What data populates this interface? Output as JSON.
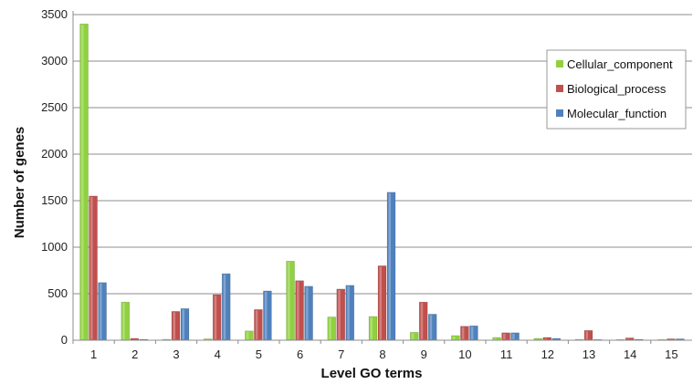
{
  "chart_data": {
    "type": "bar",
    "title": "",
    "xlabel": "Level GO terms",
    "ylabel": "Number of genes",
    "categories": [
      "1",
      "2",
      "3",
      "4",
      "5",
      "6",
      "7",
      "8",
      "9",
      "10",
      "11",
      "12",
      "13",
      "14",
      "15"
    ],
    "series": [
      {
        "name": "Cellular_component",
        "color": "#8fd13f",
        "values": [
          3400,
          410,
          10,
          15,
          100,
          850,
          250,
          255,
          85,
          50,
          30,
          20,
          10,
          5,
          5
        ]
      },
      {
        "name": "Biological_process",
        "color": "#c0504d",
        "values": [
          1550,
          20,
          310,
          490,
          330,
          640,
          550,
          800,
          410,
          150,
          80,
          30,
          105,
          25,
          15
        ]
      },
      {
        "name": "Molecular_function",
        "color": "#4f81bd",
        "values": [
          620,
          10,
          340,
          715,
          530,
          580,
          590,
          1590,
          280,
          155,
          80,
          20,
          5,
          10,
          15
        ]
      }
    ],
    "ylim": [
      0,
      3500
    ],
    "yticks": [
      "0",
      "500",
      "1000",
      "1500",
      "2000",
      "2500",
      "3000",
      "3500"
    ],
    "grid": true,
    "legend_position": "top-right"
  }
}
